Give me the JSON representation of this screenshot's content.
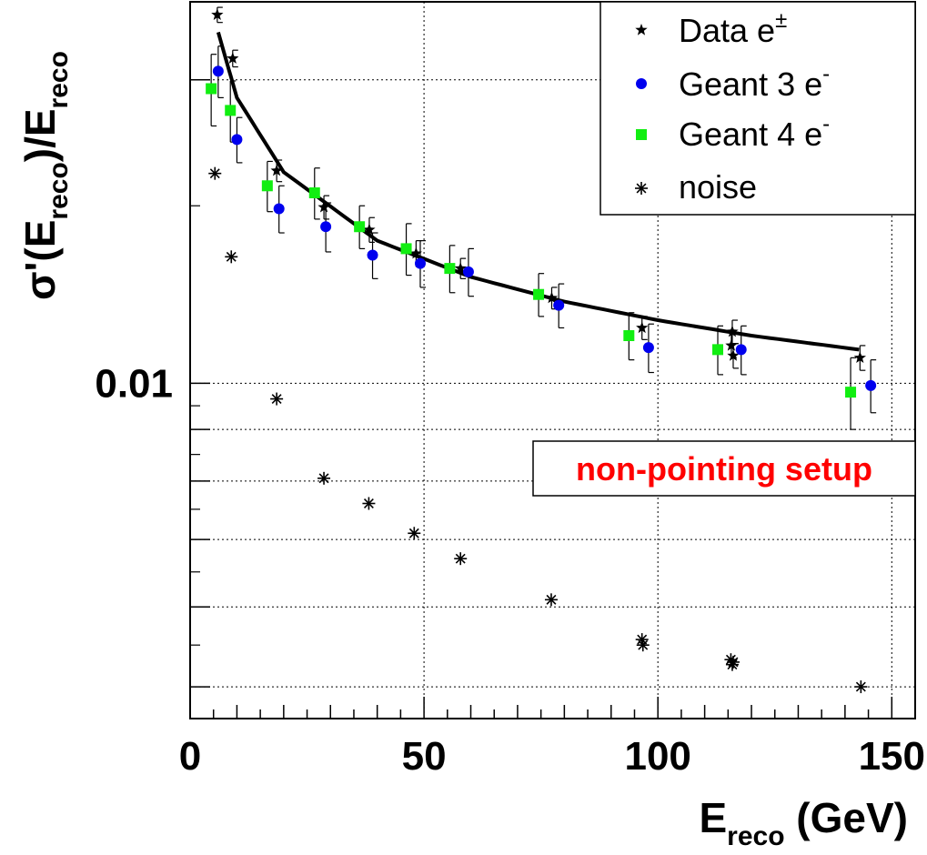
{
  "chart_data": {
    "type": "scatter",
    "title": "",
    "xlabel": {
      "main": "E",
      "sub": "reco",
      "unit": " (GeV)"
    },
    "ylabel": {
      "pre": "σ'(E",
      "sub1": "reco",
      "mid": ")/E",
      "sub2": "reco"
    },
    "xlim": [
      0,
      155
    ],
    "ylim": [
      0.00465,
      0.0239
    ],
    "yscale": "log",
    "grid": true,
    "x_ticks": [
      {
        "value": 0,
        "label": "0"
      },
      {
        "value": 50,
        "label": "50"
      },
      {
        "value": 100,
        "label": "100"
      },
      {
        "value": 150,
        "label": "150"
      }
    ],
    "y_ticks": [
      {
        "value": 0.01,
        "label": "0.01"
      }
    ],
    "legend_position": "top-right",
    "series": [
      {
        "name": "Data e",
        "name_sup": "±",
        "marker": "star",
        "color": "#000000",
        "points": [
          {
            "x": 5.8,
            "y": 0.0232,
            "err": 0.0004
          },
          {
            "x": 9.1,
            "y": 0.021,
            "err": 0.0004
          },
          {
            "x": 18.5,
            "y": 0.01625,
            "err": 0.0004
          },
          {
            "x": 28.6,
            "y": 0.01495,
            "err": 0.0004
          },
          {
            "x": 38.3,
            "y": 0.0142,
            "err": 0.0004
          },
          {
            "x": 48.3,
            "y": 0.01345,
            "err": 0.0004
          },
          {
            "x": 57.8,
            "y": 0.013,
            "err": 0.0003
          },
          {
            "x": 77.3,
            "y": 0.01215,
            "err": 0.0003
          },
          {
            "x": 96.6,
            "y": 0.01135,
            "err": 0.0003
          },
          {
            "x": 115.7,
            "y": 0.0109,
            "err": 0.0003
          },
          {
            "x": 115.9,
            "y": 0.01125,
            "err": 0.0003
          },
          {
            "x": 116.1,
            "y": 0.01065,
            "err": 0.0003
          },
          {
            "x": 143.2,
            "y": 0.0106,
            "err": 0.0003
          }
        ]
      },
      {
        "name": "Geant 3 e",
        "name_sup": "-",
        "marker": "circle",
        "color": "#0000ee",
        "points": [
          {
            "x": 6.0,
            "y": 0.0204,
            "err": 0.0012
          },
          {
            "x": 10.0,
            "y": 0.01745,
            "err": 0.0009
          },
          {
            "x": 19.0,
            "y": 0.0149,
            "err": 0.0008
          },
          {
            "x": 29.0,
            "y": 0.0143,
            "err": 0.0008
          },
          {
            "x": 39.0,
            "y": 0.0134,
            "err": 0.0007
          },
          {
            "x": 49.2,
            "y": 0.01315,
            "err": 0.0007
          },
          {
            "x": 59.5,
            "y": 0.0129,
            "err": 0.0007
          },
          {
            "x": 78.8,
            "y": 0.01195,
            "err": 0.0006
          },
          {
            "x": 98.0,
            "y": 0.01085,
            "err": 0.0006
          },
          {
            "x": 117.8,
            "y": 0.0108,
            "err": 0.0006
          },
          {
            "x": 145.5,
            "y": 0.00995,
            "err": 0.0006
          }
        ]
      },
      {
        "name": "Geant 4 e",
        "name_sup": "-",
        "marker": "square",
        "color": "#11ee11",
        "points": [
          {
            "x": 4.5,
            "y": 0.0196,
            "err": 0.0016
          },
          {
            "x": 8.6,
            "y": 0.01865,
            "err": 0.0013
          },
          {
            "x": 16.5,
            "y": 0.0157,
            "err": 0.0009
          },
          {
            "x": 26.6,
            "y": 0.01545,
            "err": 0.0009
          },
          {
            "x": 36.2,
            "y": 0.0143,
            "err": 0.0007
          },
          {
            "x": 46.2,
            "y": 0.0136,
            "err": 0.0008
          },
          {
            "x": 55.5,
            "y": 0.013,
            "err": 0.0007
          },
          {
            "x": 74.5,
            "y": 0.01225,
            "err": 0.0006
          },
          {
            "x": 93.8,
            "y": 0.01115,
            "err": 0.0006
          },
          {
            "x": 112.8,
            "y": 0.0108,
            "err": 0.0006
          },
          {
            "x": 141.2,
            "y": 0.0098,
            "err": 0.0008
          }
        ]
      },
      {
        "name": "noise",
        "name_sup": "",
        "marker": "asterisk",
        "color": "#000000",
        "points": [
          {
            "x": 5.3,
            "y": 0.01615
          },
          {
            "x": 8.8,
            "y": 0.01335
          },
          {
            "x": 18.5,
            "y": 0.00965
          },
          {
            "x": 28.6,
            "y": 0.00805
          },
          {
            "x": 38.2,
            "y": 0.0076
          },
          {
            "x": 47.9,
            "y": 0.0071
          },
          {
            "x": 57.8,
            "y": 0.0067
          },
          {
            "x": 77.2,
            "y": 0.0061
          },
          {
            "x": 96.6,
            "y": 0.00557
          },
          {
            "x": 96.8,
            "y": 0.0055
          },
          {
            "x": 115.6,
            "y": 0.00532
          },
          {
            "x": 115.9,
            "y": 0.00526
          },
          {
            "x": 116.1,
            "y": 0.00529
          },
          {
            "x": 143.4,
            "y": 0.005
          }
        ]
      }
    ],
    "fit_curve": {
      "range": [
        6,
        143
      ],
      "values_at": [
        [
          6,
          0.0223
        ],
        [
          10,
          0.0192
        ],
        [
          20,
          0.0162
        ],
        [
          40,
          0.01385
        ],
        [
          60,
          0.01275
        ],
        [
          80,
          0.01205
        ],
        [
          100,
          0.01155
        ],
        [
          120,
          0.01115
        ],
        [
          143,
          0.0108
        ]
      ]
    },
    "annotation": {
      "text": "non-pointing setup",
      "color": "#ff0000",
      "position": "right-middle"
    }
  }
}
